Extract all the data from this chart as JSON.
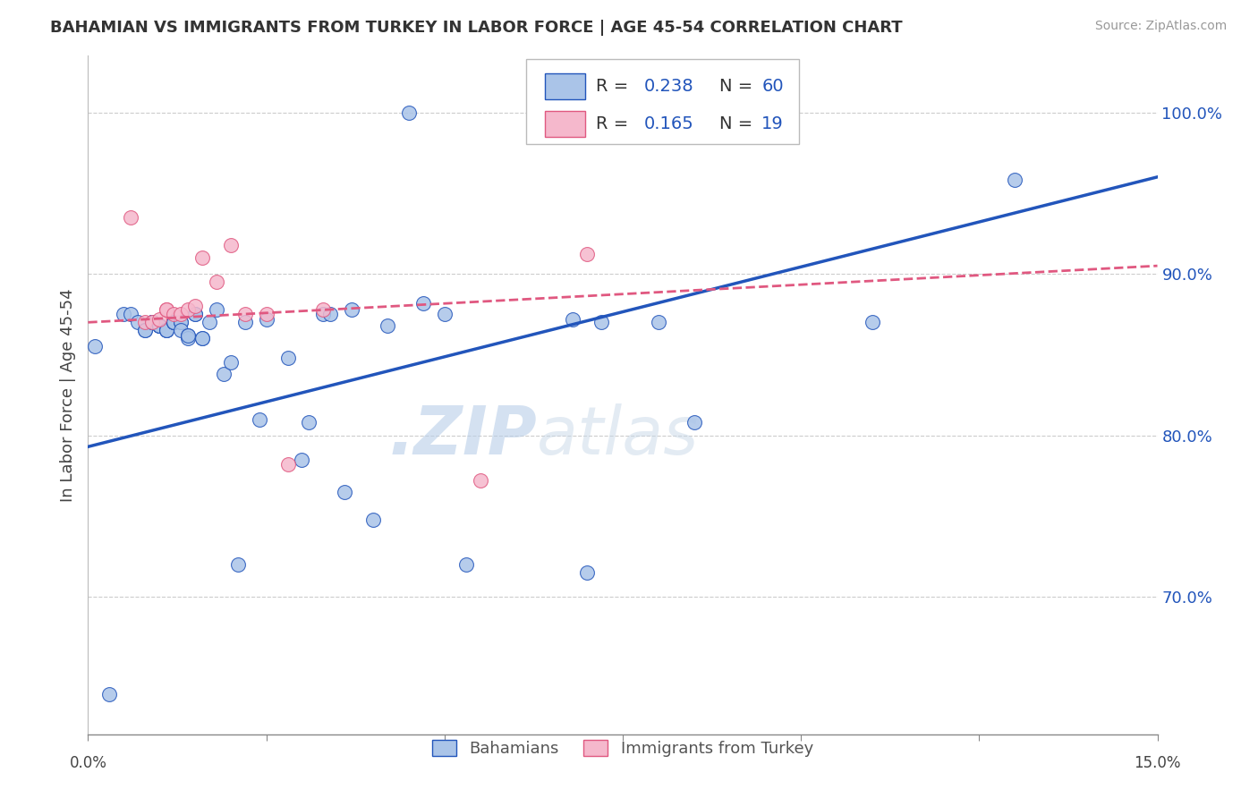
{
  "title": "BAHAMIAN VS IMMIGRANTS FROM TURKEY IN LABOR FORCE | AGE 45-54 CORRELATION CHART",
  "source": "Source: ZipAtlas.com",
  "ylabel": "In Labor Force | Age 45-54",
  "ytick_labels": [
    "70.0%",
    "80.0%",
    "90.0%",
    "100.0%"
  ],
  "ytick_values": [
    0.7,
    0.8,
    0.9,
    1.0
  ],
  "xlim": [
    0.0,
    0.15
  ],
  "ylim": [
    0.615,
    1.035
  ],
  "legend_label_blue": "Bahamians",
  "legend_label_pink": "Immigrants from Turkey",
  "blue_color": "#aac4e8",
  "blue_line_color": "#2255bb",
  "pink_color": "#f5b8cc",
  "pink_line_color": "#e05880",
  "watermark_zip": ".ZIP",
  "watermark_atlas": "atlas",
  "blue_line_y0": 0.793,
  "blue_line_y1": 0.96,
  "pink_line_y0": 0.87,
  "pink_line_y1": 0.905,
  "blue_x": [
    0.001,
    0.003,
    0.005,
    0.006,
    0.007,
    0.008,
    0.008,
    0.009,
    0.009,
    0.009,
    0.009,
    0.01,
    0.01,
    0.01,
    0.01,
    0.011,
    0.011,
    0.011,
    0.012,
    0.012,
    0.012,
    0.012,
    0.013,
    0.013,
    0.013,
    0.014,
    0.014,
    0.014,
    0.015,
    0.015,
    0.016,
    0.016,
    0.017,
    0.018,
    0.019,
    0.02,
    0.021,
    0.022,
    0.024,
    0.025,
    0.028,
    0.03,
    0.031,
    0.033,
    0.034,
    0.036,
    0.037,
    0.04,
    0.042,
    0.045,
    0.047,
    0.05,
    0.053,
    0.068,
    0.07,
    0.072,
    0.08,
    0.085,
    0.11,
    0.13
  ],
  "blue_y": [
    0.855,
    0.64,
    0.875,
    0.875,
    0.87,
    0.865,
    0.865,
    0.87,
    0.87,
    0.87,
    0.87,
    0.868,
    0.868,
    0.868,
    0.868,
    0.865,
    0.865,
    0.865,
    0.87,
    0.87,
    0.87,
    0.87,
    0.87,
    0.87,
    0.865,
    0.862,
    0.86,
    0.862,
    0.875,
    0.875,
    0.86,
    0.86,
    0.87,
    0.878,
    0.838,
    0.845,
    0.72,
    0.87,
    0.81,
    0.872,
    0.848,
    0.785,
    0.808,
    0.875,
    0.875,
    0.765,
    0.878,
    0.748,
    0.868,
    1.0,
    0.882,
    0.875,
    0.72,
    0.872,
    0.715,
    0.87,
    0.87,
    0.808,
    0.87,
    0.958
  ],
  "pink_x": [
    0.006,
    0.008,
    0.009,
    0.01,
    0.011,
    0.011,
    0.012,
    0.013,
    0.014,
    0.015,
    0.016,
    0.018,
    0.02,
    0.022,
    0.025,
    0.028,
    0.033,
    0.055,
    0.07
  ],
  "pink_y": [
    0.935,
    0.87,
    0.87,
    0.872,
    0.878,
    0.878,
    0.875,
    0.875,
    0.878,
    0.88,
    0.91,
    0.895,
    0.918,
    0.875,
    0.875,
    0.782,
    0.878,
    0.772,
    0.912
  ]
}
